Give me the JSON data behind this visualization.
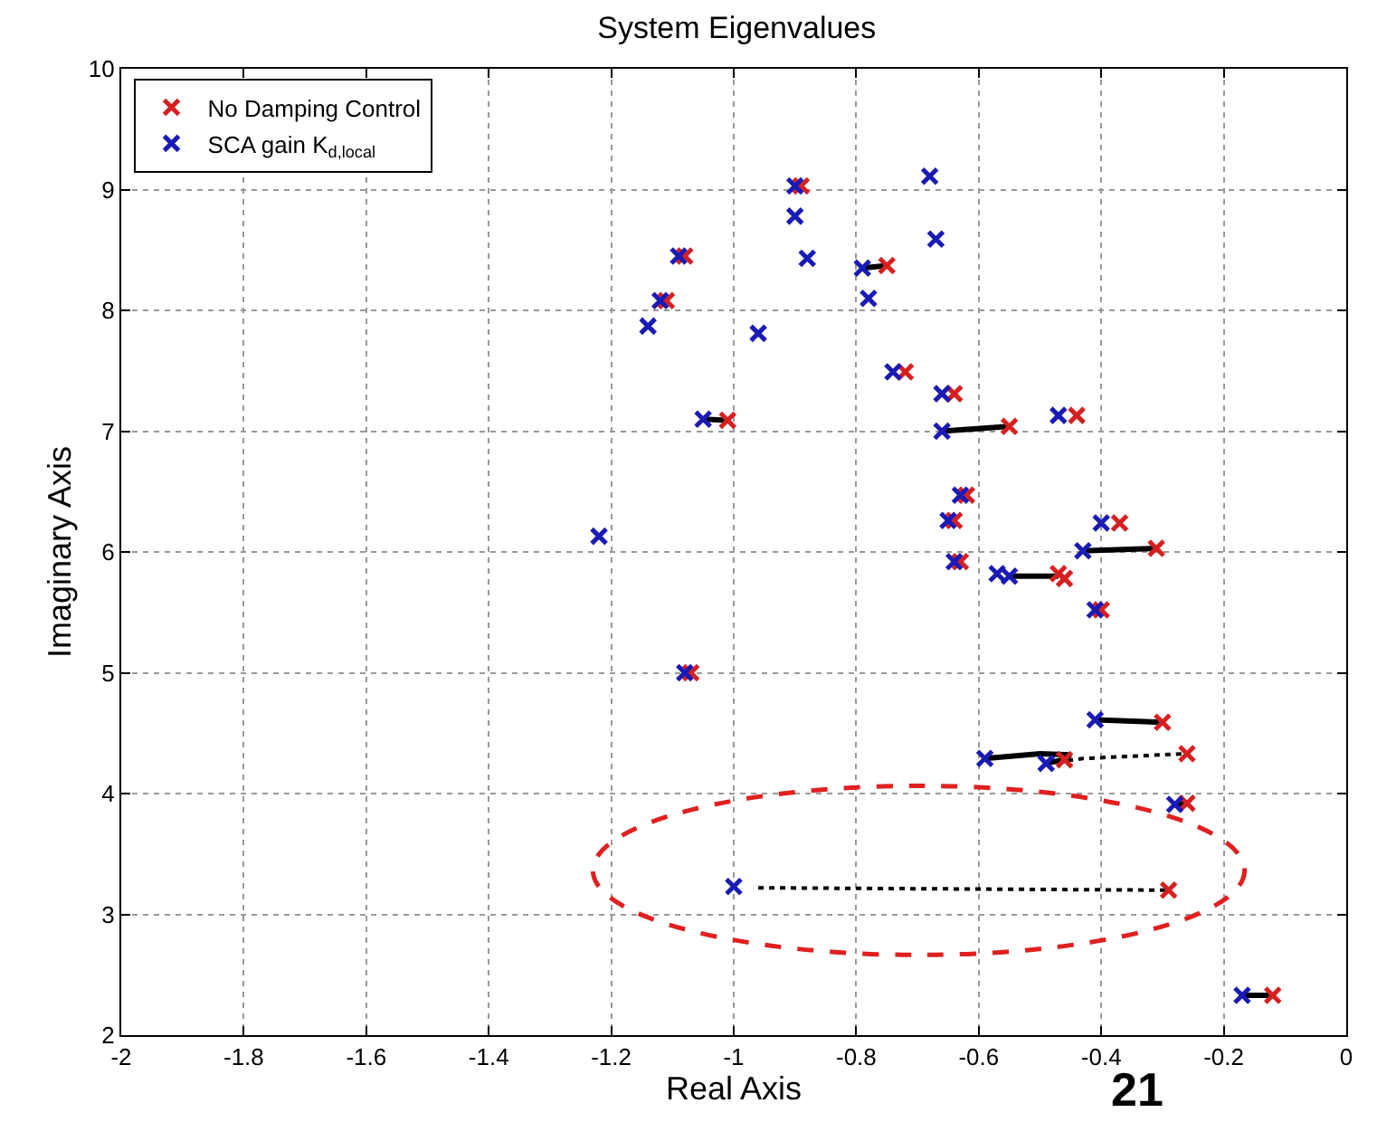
{
  "chart_data": {
    "type": "scatter",
    "title": "System Eigenvalues",
    "xlabel": "Real Axis",
    "ylabel": "Imaginary Axis",
    "xlim": [
      -2,
      0
    ],
    "xticks": [
      -2,
      -1.8,
      -1.6,
      -1.4,
      -1.2,
      -1,
      -0.8,
      -0.6,
      -0.4,
      -0.2,
      0
    ],
    "ylim": [
      2,
      10
    ],
    "yticks": [
      2,
      3,
      4,
      5,
      6,
      7,
      8,
      9,
      10
    ],
    "grid": true,
    "legend": "top left",
    "marker": "cross",
    "annotations": [
      "21"
    ],
    "series": [
      {
        "type": "line",
        "marker": "none",
        "color": "#000000",
        "line_style": "solid",
        "x": [
          -0.79,
          -0.75,
          null,
          -1.05,
          -1.01,
          null,
          -0.66,
          -0.55,
          null,
          -0.43,
          -0.31,
          null,
          -0.55,
          -0.47,
          null,
          -0.41,
          -0.3,
          null,
          -0.59,
          -0.5,
          -0.45,
          -0.47,
          -0.49,
          null,
          -0.17,
          -0.12,
          null,
          -0.28,
          -0.26
        ],
        "values": [
          8.35,
          8.37,
          null,
          7.1,
          7.09,
          null,
          7.0,
          7.04,
          null,
          6.01,
          6.03,
          null,
          5.8,
          5.8,
          null,
          4.61,
          4.59,
          null,
          4.29,
          4.33,
          4.32,
          4.27,
          4.25,
          null,
          2.33,
          2.33,
          null,
          3.91,
          3.92
        ]
      },
      {
        "type": "line",
        "marker": "none",
        "color": "#000000",
        "line_style": "dotted",
        "x": [
          -0.49,
          -0.43,
          -0.26,
          null,
          -0.96,
          -0.29
        ],
        "values": [
          4.25,
          4.29,
          4.33,
          null,
          3.22,
          3.2
        ]
      },
      {
        "name": "No Damping Control",
        "color": "#d62020",
        "x": [
          -0.89,
          -1.08,
          -1.11,
          -0.75,
          -0.72,
          -1.01,
          -0.64,
          -0.55,
          -0.44,
          -0.62,
          -0.37,
          -0.31,
          -0.63,
          -0.46,
          -0.47,
          -0.4,
          -1.07,
          -0.3,
          -0.26,
          -0.46,
          -0.26,
          -0.29,
          -0.12,
          -0.64
        ],
        "values": [
          9.03,
          8.45,
          8.08,
          8.37,
          7.49,
          7.09,
          7.31,
          7.04,
          7.13,
          6.47,
          6.24,
          6.03,
          5.92,
          5.78,
          5.82,
          5.52,
          5.0,
          4.59,
          4.33,
          4.28,
          3.92,
          3.2,
          2.33,
          6.26
        ]
      },
      {
        "name": "SCA gain K$_{d,local}$",
        "color": "#1a1ab4",
        "x": [
          -0.9,
          -0.9,
          -0.88,
          -0.68,
          -0.67,
          -0.79,
          -0.78,
          -1.09,
          -1.12,
          -1.14,
          -0.96,
          -0.74,
          -1.05,
          -0.66,
          -0.66,
          -0.47,
          -0.63,
          -0.65,
          -0.4,
          -0.43,
          -1.22,
          -0.64,
          -0.57,
          -0.55,
          -0.41,
          -1.08,
          -0.41,
          -0.59,
          -0.49,
          -0.28,
          -1.0,
          -0.17
        ],
        "values": [
          9.03,
          8.78,
          8.43,
          9.11,
          8.59,
          8.35,
          8.1,
          8.45,
          8.08,
          7.87,
          7.81,
          7.49,
          7.1,
          7.31,
          7.0,
          7.13,
          6.47,
          6.26,
          6.24,
          6.01,
          6.13,
          5.92,
          5.82,
          5.8,
          5.52,
          5.0,
          4.61,
          4.29,
          4.25,
          3.91,
          3.23,
          2.33
        ]
      }
    ]
  }
}
